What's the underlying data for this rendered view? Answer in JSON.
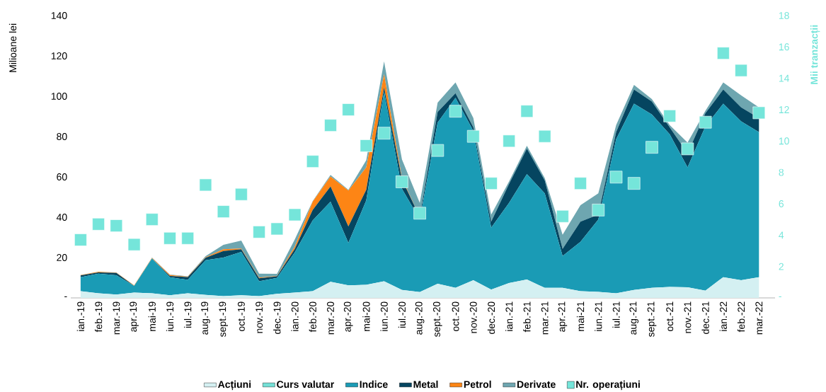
{
  "chart_data": {
    "type": "area",
    "stacked": true,
    "ylabel": "Milioane lei",
    "y2label": "Mii tranzacții",
    "categories": [
      "ian.-19",
      "feb.-19",
      "mar.-19",
      "apr.-19",
      "mai-19",
      "iun.-19",
      "iul.-19",
      "aug.-19",
      "sept.-19",
      "oct.-19",
      "nov.-19",
      "dec.-19",
      "ian.-20",
      "feb.-20",
      "mar.-20",
      "apr.-20",
      "mai-20",
      "iun.-20",
      "iul.-20",
      "aug.-20",
      "sept.-20",
      "oct.-20",
      "nov.-20",
      "dec.-20",
      "ian.-21",
      "feb.-21",
      "mar.-21",
      "apr.-21",
      "mai-21",
      "iun.-21",
      "iul.-21",
      "aug.-21",
      "sept.-21",
      "oct.-21",
      "nov.-21",
      "dec.-21",
      "ian.-22",
      "feb.-22",
      "mar.-22"
    ],
    "series": [
      {
        "name": "Acțiuni",
        "color": "#d4f0f2",
        "values": [
          3.3,
          2.3,
          1.7,
          2.6,
          2.3,
          1.3,
          2.3,
          1.5,
          0.9,
          1.3,
          0.9,
          2.0,
          2.6,
          3.3,
          8.0,
          6.2,
          6.5,
          8.2,
          3.9,
          2.9,
          7.0,
          5.0,
          8.8,
          4.1,
          7.4,
          9.1,
          5.0,
          5.0,
          3.3,
          3.0,
          2.3,
          3.9,
          5.0,
          5.4,
          5.3,
          3.6,
          10.3,
          8.8,
          10.3
        ]
      },
      {
        "name": "Curs valutar",
        "color": "#74e0d6",
        "values": [
          null,
          null,
          null,
          null,
          null,
          null,
          null,
          null,
          null,
          null,
          null,
          null,
          null,
          null,
          null,
          null,
          null,
          null,
          null,
          null,
          null,
          null,
          null,
          null,
          null,
          null,
          null,
          null,
          null,
          null,
          null,
          null,
          null,
          null,
          null,
          null,
          null,
          null,
          null
        ]
      },
      {
        "name": "Indice",
        "color": "#1a9bb5",
        "values": [
          7.0,
          9.7,
          9.5,
          3.4,
          17.3,
          9.0,
          6.6,
          17.2,
          19.1,
          21.5,
          7.3,
          7.9,
          20.0,
          35.1,
          39.7,
          21.1,
          41.8,
          93.9,
          50.2,
          36.0,
          79.9,
          94.2,
          74.0,
          30.7,
          39.7,
          52.3,
          46.8,
          15.8,
          24.5,
          35.9,
          76.4,
          92.4,
          86.0,
          75.7,
          59.4,
          81.5,
          86.0,
          78.7,
          71.9
        ]
      },
      {
        "name": "Metal",
        "color": "#054560",
        "values": [
          0.8,
          0.6,
          1.2,
          0,
          0,
          0.6,
          1.4,
          1.2,
          3.2,
          1.3,
          1.5,
          0.8,
          1.7,
          5.2,
          7.6,
          8.1,
          5.3,
          2.3,
          4.7,
          1.2,
          5.3,
          2.3,
          1.8,
          3.0,
          9.4,
          12.6,
          6.4,
          3.5,
          10.0,
          2.4,
          3.5,
          7.0,
          6.4,
          3.5,
          7.0,
          6.5,
          7.0,
          7.0,
          7.0
        ]
      },
      {
        "name": "Petrol",
        "color": "#fd8515",
        "values": [
          0.2,
          0.4,
          0.1,
          0.2,
          0.2,
          0.5,
          0.2,
          0.3,
          0.9,
          0.4,
          0.4,
          0.2,
          1.1,
          4.1,
          4.9,
          17.8,
          11.1,
          6.5,
          0.6,
          0,
          0,
          0,
          0,
          0,
          0,
          0,
          0,
          0,
          0,
          0,
          0,
          0,
          0,
          0,
          0,
          0,
          0,
          0,
          0
        ]
      },
      {
        "name": "Derivate",
        "color": "#6ea6b0",
        "values": [
          0.1,
          0,
          0.1,
          0,
          0.2,
          0.2,
          0.2,
          0.5,
          2.2,
          3.9,
          1.9,
          1.0,
          3.6,
          0.3,
          0.8,
          0.4,
          3.5,
          6.4,
          9.3,
          7.0,
          4.6,
          5.3,
          4.6,
          3.5,
          1.2,
          1.4,
          1.2,
          7.0,
          8.2,
          10.5,
          3.5,
          2.3,
          1.2,
          1.1,
          5.3,
          1.2,
          3.5,
          5.9,
          5.3
        ]
      },
      {
        "name": "Nr. operațiuni",
        "color": "#75e5da",
        "type": "scatter",
        "axis": "y2",
        "marker": "square",
        "values": [
          3.7,
          4.7,
          4.6,
          3.4,
          5.0,
          3.8,
          3.8,
          7.2,
          5.5,
          6.6,
          4.2,
          4.4,
          5.3,
          8.7,
          11.0,
          12.0,
          9.7,
          10.5,
          7.4,
          5.4,
          9.4,
          11.9,
          10.3,
          7.3,
          10.0,
          11.9,
          10.3,
          5.2,
          7.3,
          5.6,
          7.7,
          7.3,
          9.6,
          11.6,
          9.5,
          11.2,
          15.6,
          14.5,
          11.8
        ]
      }
    ],
    "ylim": [
      0,
      140
    ],
    "yticks": [
      {
        "value": 0,
        "label": "-"
      },
      20,
      40,
      60,
      80,
      100,
      120,
      140
    ],
    "y2lim": [
      0,
      18
    ],
    "y2ticks": [
      {
        "value": 0,
        "label": "-"
      },
      2,
      4,
      6,
      8,
      10,
      12,
      14,
      16,
      18
    ],
    "legend": "bottom"
  }
}
